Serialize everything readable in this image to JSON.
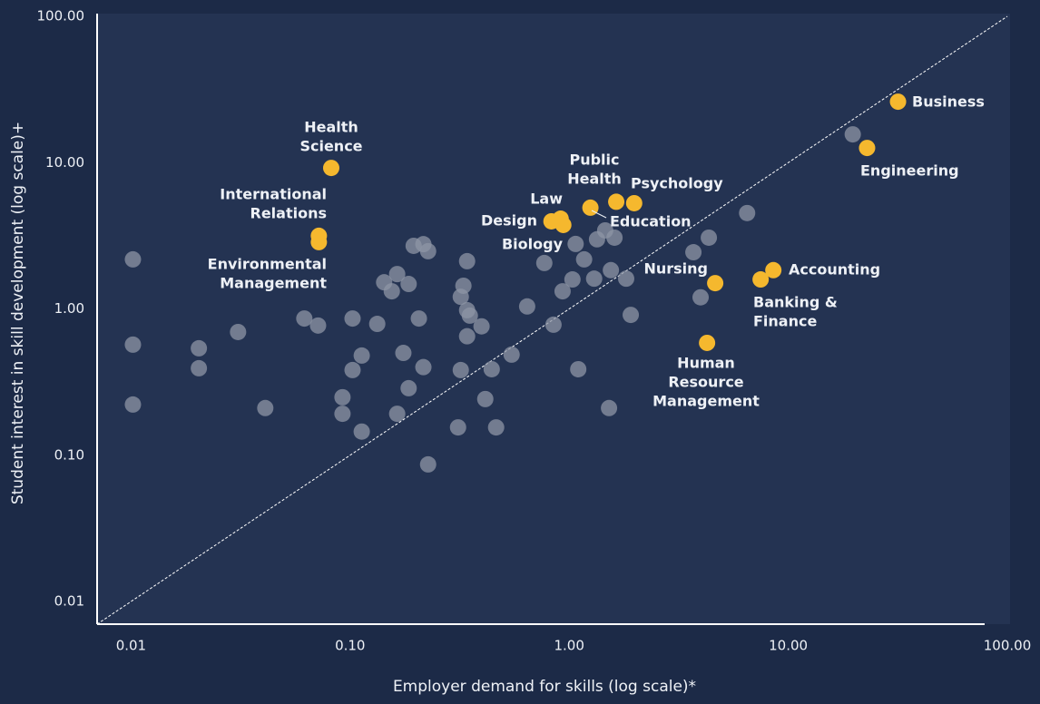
{
  "chart_data": {
    "type": "scatter",
    "x_label": "Employer demand for skills (log scale)*",
    "y_label": "Student interest in skill development (log scale)+",
    "xlog": true,
    "ylog": true,
    "xlim": [
      0.007,
      100
    ],
    "ylim": [
      0.007,
      100
    ],
    "xticks": [
      0.01,
      {
        "value": 0.1,
        "label": "0.10"
      },
      {
        "value": 1,
        "label": "1.00"
      },
      {
        "value": 10,
        "label": "10.00"
      },
      {
        "value": 100,
        "label": "100.00"
      }
    ],
    "yticks": [
      0.01,
      {
        "value": 0.1,
        "label": "0.10"
      },
      {
        "value": 1,
        "label": "1.00"
      },
      {
        "value": 10,
        "label": "10.00"
      },
      {
        "value": 100,
        "label": "100.00"
      }
    ],
    "diagonal": true,
    "series": [
      {
        "color": "#8d95a6",
        "x": [
          0.0102,
          0.0102,
          0.0102,
          0.0204,
          0.0204,
          0.0308,
          0.041,
          0.0618,
          0.0714,
          0.0923,
          0.0923,
          0.1026,
          0.1026,
          0.113,
          0.113,
          0.133,
          0.143,
          0.155,
          0.164,
          0.164,
          0.175,
          0.185,
          0.185,
          0.206,
          0.195,
          0.216,
          0.227,
          0.216,
          0.227,
          0.32,
          0.311,
          0.32,
          0.329,
          0.342,
          0.342,
          0.352,
          0.342,
          0.398,
          0.414,
          0.443,
          0.464,
          0.546,
          0.643,
          0.77,
          0.848,
          0.933,
          1.035,
          1.1,
          1.07,
          1.17,
          1.3,
          1.34,
          1.46,
          1.61,
          1.55,
          1.82,
          1.52,
          1.91,
          3.98,
          3.69,
          4.34,
          6.49,
          19.7
        ],
        "values": [
          2.18,
          0.57,
          0.222,
          0.538,
          0.393,
          0.695,
          0.21,
          0.86,
          0.77,
          0.249,
          0.192,
          0.86,
          0.382,
          0.48,
          0.145,
          0.79,
          1.52,
          1.32,
          1.73,
          0.192,
          0.5,
          1.48,
          0.287,
          0.86,
          2.7,
          2.77,
          2.48,
          0.4,
          0.0865,
          0.382,
          0.155,
          1.21,
          1.44,
          2.12,
          0.98,
          0.9,
          0.65,
          0.76,
          0.242,
          0.387,
          0.155,
          0.487,
          1.04,
          2.06,
          0.78,
          1.32,
          1.59,
          0.387,
          2.78,
          2.18,
          1.61,
          2.99,
          3.44,
          3.07,
          1.84,
          1.61,
          0.21,
          0.91,
          1.2,
          2.44,
          3.07,
          4.52,
          15.6
        ]
      },
      {
        "color": "#f5b82e",
        "x": [
          31.7,
          22.9,
          0.082,
          0.072,
          0.072,
          1.64,
          1.98,
          1.25,
          0.914,
          0.83,
          0.94,
          4.64,
          8.55,
          7.48,
          4.26
        ],
        "values": [
          26.1,
          12.6,
          9.2,
          3.16,
          2.86,
          5.4,
          5.28,
          4.92,
          4.14,
          3.97,
          3.75,
          1.5,
          1.84,
          1.59,
          0.586
        ],
        "labels": [
          [
            "Business"
          ],
          [
            "Engineering"
          ],
          [
            "Health",
            "Science"
          ],
          [
            "International",
            "Relations"
          ],
          [
            "Environmental",
            "Management"
          ],
          [
            "Public",
            "Health"
          ],
          [
            "Psychology"
          ],
          [
            "Education"
          ],
          [
            "Law"
          ],
          [
            "Design"
          ],
          [
            "Biology"
          ],
          [
            "Nursing"
          ],
          [
            "Accounting"
          ],
          [
            "Banking &",
            "Finance"
          ],
          [
            "Human",
            "Resource",
            "Management"
          ]
        ]
      }
    ]
  }
}
